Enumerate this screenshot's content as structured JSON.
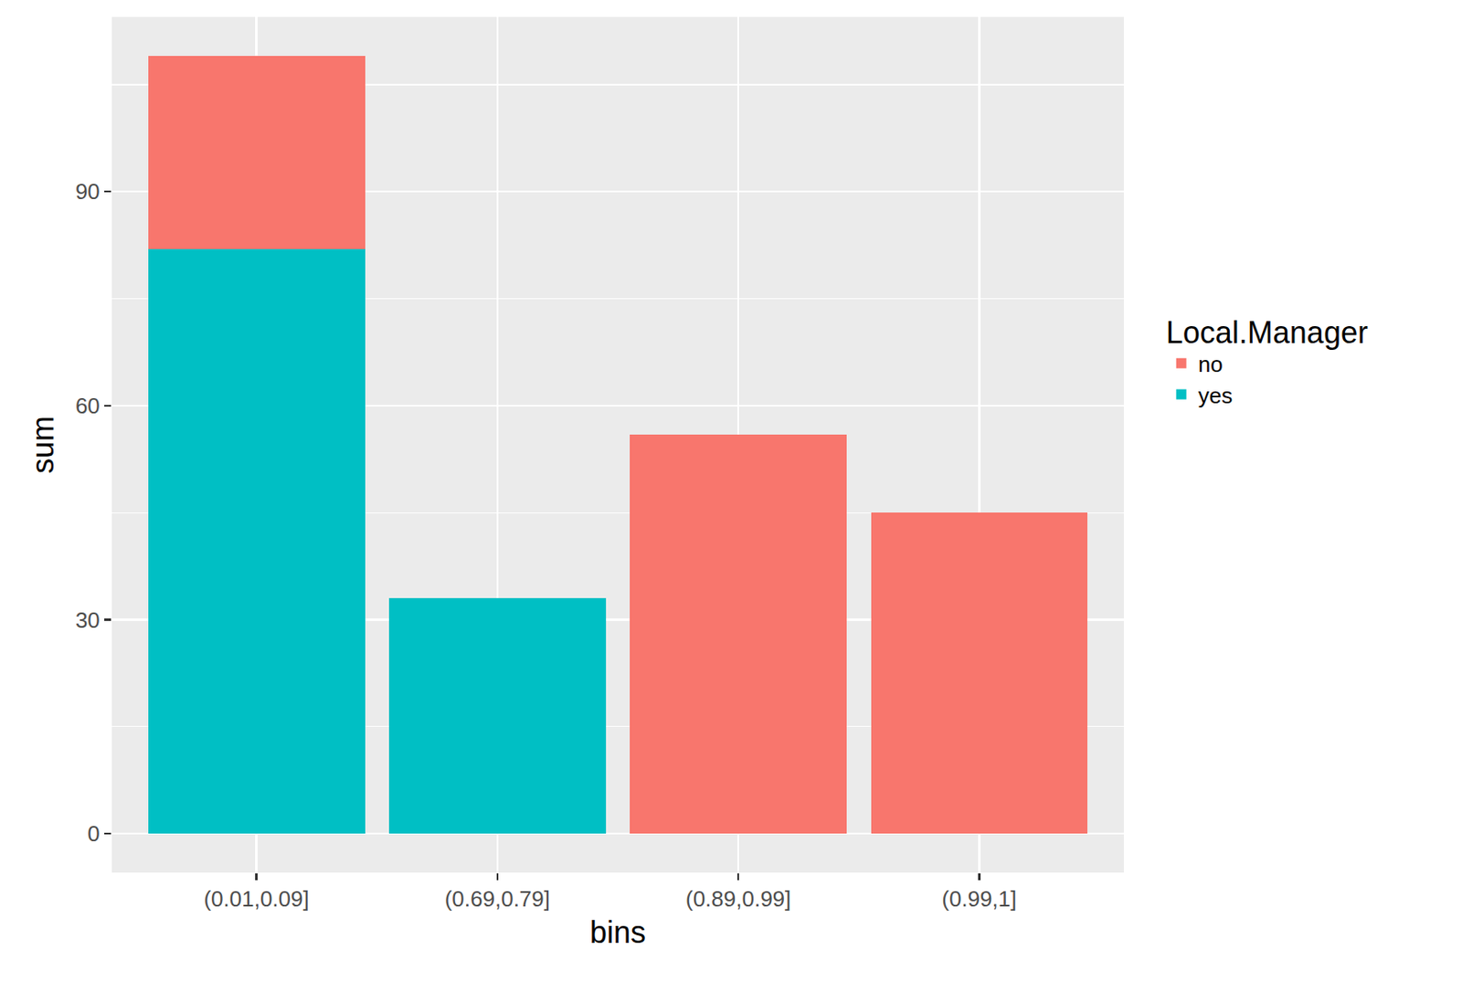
{
  "chart_data": {
    "type": "bar",
    "stacked": true,
    "x_label": "bins",
    "y_label": "sum",
    "legend_title": "Local.Manager",
    "categories": [
      "(0.01,0.09]",
      "(0.69,0.79]",
      "(0.89,0.99]",
      "(0.99,1]"
    ],
    "series": [
      {
        "name": "no",
        "color": "#F8766D",
        "values": [
          27,
          null,
          56,
          45
        ]
      },
      {
        "name": "yes",
        "color": "#00BFC4",
        "values": [
          82,
          33,
          null,
          null
        ]
      }
    ],
    "ylim": [
      -5.45,
      114.5
    ],
    "yticks": [
      0,
      30,
      60,
      90
    ],
    "grid": true,
    "legend": "right"
  }
}
